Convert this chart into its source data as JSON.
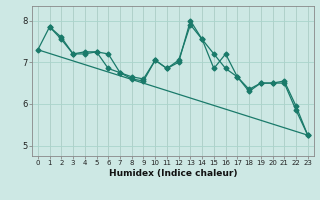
{
  "bg_color": "#cde8e4",
  "grid_color": "#aad4cc",
  "line_color": "#1a7a6a",
  "xlabel": "Humidex (Indice chaleur)",
  "ylim": [
    4.75,
    8.35
  ],
  "xlim": [
    -0.5,
    23.5
  ],
  "yticks": [
    5,
    6,
    7,
    8
  ],
  "xticks": [
    0,
    1,
    2,
    3,
    4,
    5,
    6,
    7,
    8,
    9,
    10,
    11,
    12,
    13,
    14,
    15,
    16,
    17,
    18,
    19,
    20,
    21,
    22,
    23
  ],
  "line1_x": [
    0,
    1,
    2,
    3,
    4,
    5,
    6,
    7,
    8,
    9,
    10,
    11,
    12,
    13,
    14,
    15,
    16,
    17,
    18,
    19,
    20,
    21,
    22,
    23
  ],
  "line1_y": [
    7.3,
    7.85,
    7.55,
    7.2,
    7.25,
    7.25,
    6.85,
    6.75,
    6.65,
    6.6,
    7.05,
    6.85,
    7.05,
    7.9,
    7.55,
    7.2,
    6.85,
    6.65,
    6.35,
    6.5,
    6.5,
    6.55,
    5.95,
    5.25
  ],
  "line2_x": [
    1,
    2,
    3,
    4,
    5,
    6,
    7,
    8,
    9,
    10,
    11,
    12,
    13,
    14,
    15,
    16,
    17,
    18,
    19,
    20,
    21,
    22,
    23
  ],
  "line2_y": [
    7.85,
    7.6,
    7.2,
    7.2,
    7.25,
    7.2,
    6.75,
    6.6,
    6.55,
    7.05,
    6.85,
    7.0,
    8.0,
    7.55,
    6.85,
    7.2,
    6.65,
    6.3,
    6.5,
    6.5,
    6.5,
    5.85,
    5.25
  ],
  "line3_x": [
    0,
    23
  ],
  "line3_y": [
    7.3,
    5.25
  ],
  "marker_size": 2.5,
  "line_width": 0.9,
  "tick_fontsize": 5.0,
  "xlabel_fontsize": 6.5
}
